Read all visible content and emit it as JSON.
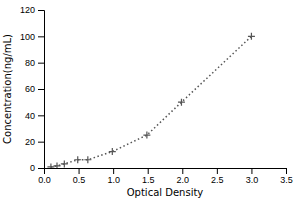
{
  "chart_data": {
    "type": "line",
    "xlabel": "Optical Density",
    "ylabel": "Concentration(ng/mL)",
    "x": [
      0.1,
      0.188,
      0.294,
      0.488,
      0.634,
      0.988,
      1.488,
      1.988,
      3.0
    ],
    "values": [
      0.78,
      1.56,
      3.12,
      6.25,
      6.25,
      12.5,
      25.0,
      50.0,
      100.0
    ],
    "color": "#555555",
    "marker": "plus",
    "line_style": "dotted",
    "xlim": [
      0,
      3.5
    ],
    "ylim": [
      0,
      120
    ],
    "xticks": [
      {
        "value": 0,
        "label": "0.0"
      },
      0.5,
      {
        "value": 1,
        "label": "1.0"
      },
      1.5,
      {
        "value": 2,
        "label": "2.0"
      },
      2.5,
      {
        "value": 3,
        "label": "3.0"
      },
      3.5
    ],
    "yticks": [
      0,
      20,
      40,
      60,
      80,
      100,
      120
    ]
  }
}
